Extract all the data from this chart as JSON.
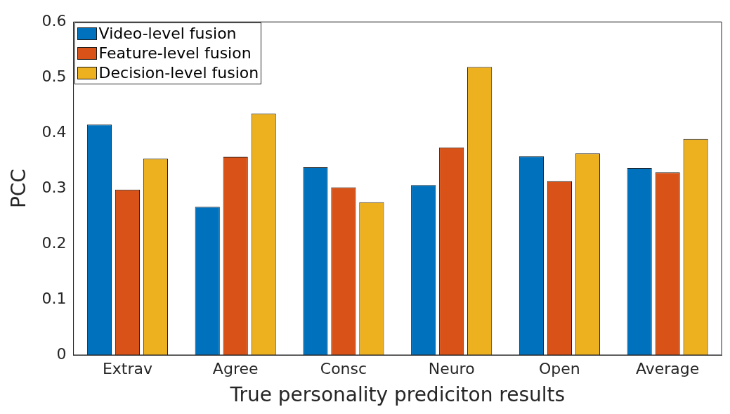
{
  "chart_data": {
    "type": "bar",
    "xlabel": "True personality prediciton results",
    "ylabel": "PCC",
    "categories": [
      "Extrav",
      "Agree",
      "Consc",
      "Neuro",
      "Open",
      "Average"
    ],
    "series": [
      {
        "name": "Video-level fusion",
        "color": "#0072bd",
        "values": [
          0.415,
          0.267,
          0.338,
          0.306,
          0.358,
          0.337
        ]
      },
      {
        "name": "Feature-level fusion",
        "color": "#d95319",
        "values": [
          0.298,
          0.357,
          0.302,
          0.374,
          0.313,
          0.329
        ]
      },
      {
        "name": "Decision-level fusion",
        "color": "#edb120",
        "values": [
          0.354,
          0.435,
          0.275,
          0.519,
          0.363,
          0.389
        ]
      }
    ],
    "ylim": [
      0,
      0.6
    ],
    "yticks": [
      0,
      0.1,
      0.2,
      0.3,
      0.4,
      0.5,
      0.6
    ],
    "grid": false,
    "legend": "top left"
  }
}
